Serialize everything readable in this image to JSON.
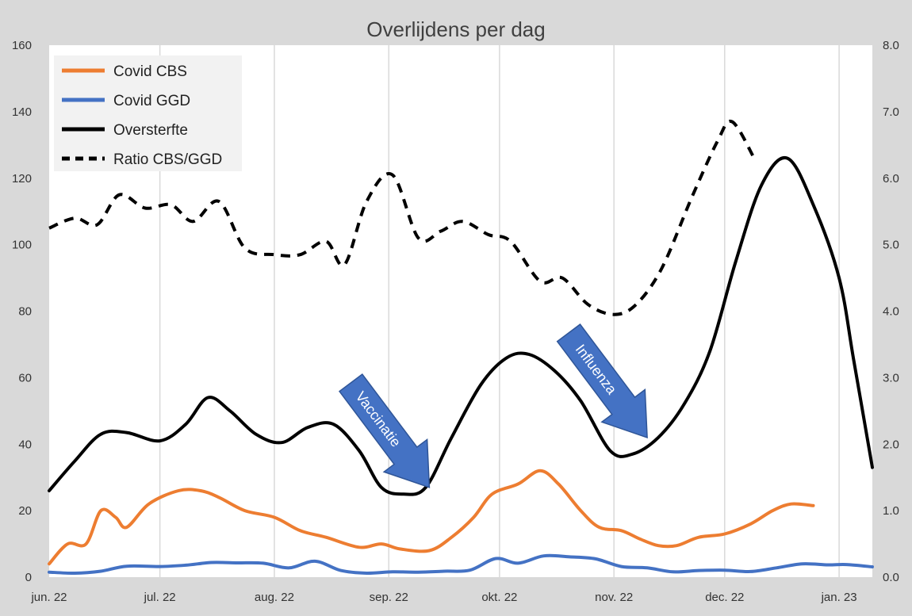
{
  "chart_data": {
    "type": "line",
    "title": "Overlijdens per dag",
    "x_tick_labels": [
      "jun. 22",
      "jul. 22",
      "aug. 22",
      "sep. 22",
      "okt. 22",
      "nov. 22",
      "dec. 22",
      "jan. 23"
    ],
    "x_tick_dates": [
      "2022-06-01",
      "2022-07-01",
      "2022-08-01",
      "2022-09-01",
      "2022-10-01",
      "2022-11-01",
      "2022-12-01",
      "2023-01-01"
    ],
    "xlim": [
      "2022-06-01",
      "2023-01-10"
    ],
    "y_left": {
      "ylim": [
        0,
        160
      ],
      "ticks": [
        0,
        20,
        40,
        60,
        80,
        100,
        120,
        140,
        160
      ],
      "tick_labels": [
        "0",
        "20",
        "40",
        "60",
        "80",
        "100",
        "120",
        "140",
        "160"
      ]
    },
    "y_right": {
      "ylim": [
        0,
        8
      ],
      "ticks": [
        0,
        1,
        2,
        3,
        4,
        5,
        6,
        7,
        8
      ],
      "tick_labels": [
        "0.0",
        "1.0",
        "2.0",
        "3.0",
        "4.0",
        "5.0",
        "6.0",
        "7.0",
        "8.0"
      ]
    },
    "grid": "vertical",
    "legend_position": "top-left",
    "series": [
      {
        "name": "Covid CBS",
        "axis": "left",
        "color": "#ED7D31",
        "style": "solid",
        "points": [
          [
            "2022-06-01",
            4
          ],
          [
            "2022-06-06",
            10
          ],
          [
            "2022-06-11",
            10
          ],
          [
            "2022-06-15",
            20
          ],
          [
            "2022-06-19",
            18
          ],
          [
            "2022-06-22",
            15
          ],
          [
            "2022-06-28",
            22
          ],
          [
            "2022-07-06",
            26
          ],
          [
            "2022-07-12",
            26
          ],
          [
            "2022-07-17",
            24
          ],
          [
            "2022-07-24",
            20
          ],
          [
            "2022-08-01",
            18
          ],
          [
            "2022-08-08",
            14
          ],
          [
            "2022-08-15",
            12
          ],
          [
            "2022-08-24",
            9
          ],
          [
            "2022-08-30",
            10
          ],
          [
            "2022-09-04",
            8.5
          ],
          [
            "2022-09-12",
            8
          ],
          [
            "2022-09-18",
            12
          ],
          [
            "2022-09-24",
            18
          ],
          [
            "2022-09-29",
            25
          ],
          [
            "2022-10-06",
            28
          ],
          [
            "2022-10-12",
            32
          ],
          [
            "2022-10-17",
            28
          ],
          [
            "2022-10-23",
            20
          ],
          [
            "2022-10-28",
            15
          ],
          [
            "2022-11-03",
            14
          ],
          [
            "2022-11-08",
            11.5
          ],
          [
            "2022-11-13",
            9.5
          ],
          [
            "2022-11-18",
            9.5
          ],
          [
            "2022-11-24",
            12
          ],
          [
            "2022-12-01",
            13
          ],
          [
            "2022-12-08",
            16
          ],
          [
            "2022-12-14",
            20
          ],
          [
            "2022-12-19",
            22
          ],
          [
            "2022-12-25",
            21.5
          ]
        ]
      },
      {
        "name": "Covid GGD",
        "axis": "left",
        "color": "#4472C4",
        "style": "solid",
        "points": [
          [
            "2022-06-01",
            1.5
          ],
          [
            "2022-06-08",
            1.2
          ],
          [
            "2022-06-15",
            1.8
          ],
          [
            "2022-06-22",
            3.3
          ],
          [
            "2022-07-01",
            3.2
          ],
          [
            "2022-07-08",
            3.6
          ],
          [
            "2022-07-15",
            4.4
          ],
          [
            "2022-07-22",
            4.3
          ],
          [
            "2022-07-29",
            4.2
          ],
          [
            "2022-08-05",
            2.8
          ],
          [
            "2022-08-12",
            4.8
          ],
          [
            "2022-08-19",
            2
          ],
          [
            "2022-08-26",
            1.2
          ],
          [
            "2022-09-02",
            1.6
          ],
          [
            "2022-09-09",
            1.5
          ],
          [
            "2022-09-16",
            1.8
          ],
          [
            "2022-09-23",
            2.1
          ],
          [
            "2022-09-30",
            5.6
          ],
          [
            "2022-10-06",
            4.2
          ],
          [
            "2022-10-13",
            6.4
          ],
          [
            "2022-10-20",
            6.1
          ],
          [
            "2022-10-27",
            5.5
          ],
          [
            "2022-11-03",
            3.2
          ],
          [
            "2022-11-10",
            2.8
          ],
          [
            "2022-11-17",
            1.6
          ],
          [
            "2022-11-24",
            2
          ],
          [
            "2022-12-01",
            2.1
          ],
          [
            "2022-12-08",
            1.7
          ],
          [
            "2022-12-15",
            2.8
          ],
          [
            "2022-12-22",
            4
          ],
          [
            "2022-12-29",
            3.7
          ],
          [
            "2023-01-03",
            3.8
          ],
          [
            "2023-01-10",
            3.1
          ]
        ]
      },
      {
        "name": "Oversterfte",
        "axis": "left",
        "color": "#000000",
        "style": "solid",
        "points": [
          [
            "2022-06-01",
            26
          ],
          [
            "2022-06-08",
            35
          ],
          [
            "2022-06-15",
            43
          ],
          [
            "2022-06-22",
            43.5
          ],
          [
            "2022-07-01",
            41
          ],
          [
            "2022-07-08",
            46
          ],
          [
            "2022-07-14",
            54
          ],
          [
            "2022-07-20",
            50
          ],
          [
            "2022-07-27",
            43
          ],
          [
            "2022-08-03",
            40.5
          ],
          [
            "2022-08-10",
            45
          ],
          [
            "2022-08-17",
            46
          ],
          [
            "2022-08-24",
            38
          ],
          [
            "2022-08-30",
            27
          ],
          [
            "2022-09-05",
            25
          ],
          [
            "2022-09-11",
            27
          ],
          [
            "2022-09-18",
            42
          ],
          [
            "2022-09-26",
            58
          ],
          [
            "2022-10-03",
            66
          ],
          [
            "2022-10-09",
            67
          ],
          [
            "2022-10-16",
            62
          ],
          [
            "2022-10-23",
            53
          ],
          [
            "2022-10-31",
            38
          ],
          [
            "2022-11-06",
            37
          ],
          [
            "2022-11-13",
            42
          ],
          [
            "2022-11-20",
            52
          ],
          [
            "2022-11-27",
            68
          ],
          [
            "2022-12-04",
            95
          ],
          [
            "2022-12-11",
            118
          ],
          [
            "2022-12-18",
            126
          ],
          [
            "2022-12-25",
            112
          ],
          [
            "2023-01-01",
            90
          ],
          [
            "2023-01-05",
            65
          ],
          [
            "2023-01-10",
            33
          ]
        ]
      },
      {
        "name": "Ratio CBS/GGD",
        "axis": "right",
        "color": "#000000",
        "style": "dashed",
        "points": [
          [
            "2022-06-01",
            5.25
          ],
          [
            "2022-06-08",
            5.4
          ],
          [
            "2022-06-14",
            5.3
          ],
          [
            "2022-06-20",
            5.75
          ],
          [
            "2022-06-27",
            5.55
          ],
          [
            "2022-07-04",
            5.6
          ],
          [
            "2022-07-10",
            5.35
          ],
          [
            "2022-07-17",
            5.65
          ],
          [
            "2022-07-24",
            4.95
          ],
          [
            "2022-08-01",
            4.85
          ],
          [
            "2022-08-08",
            4.85
          ],
          [
            "2022-08-15",
            5.05
          ],
          [
            "2022-08-20",
            4.7
          ],
          [
            "2022-08-26",
            5.65
          ],
          [
            "2022-09-02",
            6.05
          ],
          [
            "2022-09-09",
            5.1
          ],
          [
            "2022-09-15",
            5.2
          ],
          [
            "2022-09-21",
            5.35
          ],
          [
            "2022-09-28",
            5.15
          ],
          [
            "2022-10-04",
            5.05
          ],
          [
            "2022-10-12",
            4.45
          ],
          [
            "2022-10-18",
            4.5
          ],
          [
            "2022-10-25",
            4.1
          ],
          [
            "2022-11-01",
            3.95
          ],
          [
            "2022-11-07",
            4.1
          ],
          [
            "2022-11-14",
            4.65
          ],
          [
            "2022-11-22",
            5.7
          ],
          [
            "2022-11-29",
            6.55
          ],
          [
            "2022-12-03",
            6.85
          ],
          [
            "2022-12-09",
            6.3
          ]
        ]
      }
    ],
    "annotations": [
      {
        "text": "Vaccinatie",
        "points_to": [
          "2022-09-12",
          27
        ]
      },
      {
        "text": "Influenza",
        "points_to": [
          "2022-11-10",
          42
        ]
      }
    ]
  }
}
